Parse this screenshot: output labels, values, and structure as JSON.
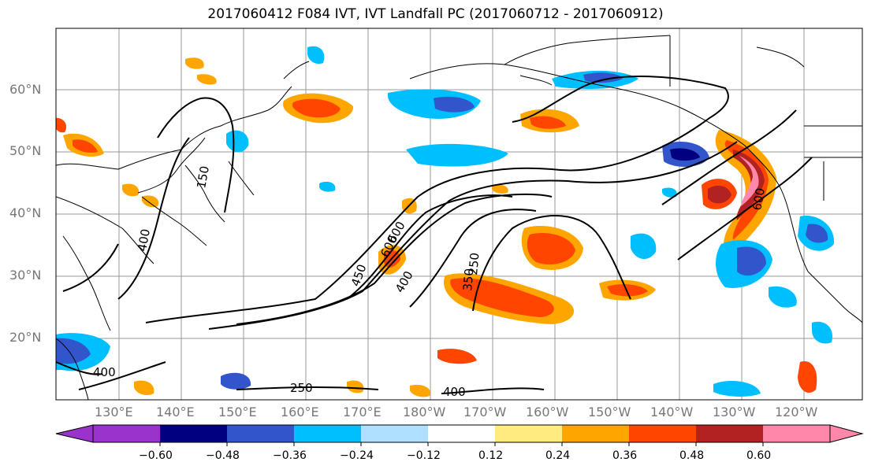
{
  "title": "2017060412 F084 IVT, IVT Landfall PC (2017060712 - 2017060912)",
  "lat_labels": [
    "60°N",
    "50°N",
    "40°N",
    "30°N",
    "20°N"
  ],
  "lon_labels": [
    "130°E",
    "140°E",
    "150°E",
    "160°E",
    "170°E",
    "180°W",
    "170°W",
    "160°W",
    "150°W",
    "140°W",
    "130°W",
    "120°W"
  ],
  "colorbar": {
    "ticks": [
      "−0.60",
      "−0.48",
      "−0.36",
      "−0.24",
      "−0.12",
      "0.12",
      "0.24",
      "0.36",
      "0.48",
      "0.60"
    ],
    "colors": [
      "#9933cc",
      "#000080",
      "#3355cc",
      "#00bfff",
      "#b0e0ff",
      "#ffffff",
      "#ffeb80",
      "#ffa500",
      "#ff4500",
      "#b22222",
      "#ff88aa",
      "#ff88aa"
    ]
  },
  "contour_labels": [
    "400",
    "600",
    "250",
    "400",
    "400",
    "450",
    "600",
    "350",
    "250",
    "600",
    "150",
    "400"
  ],
  "colors": {
    "positive_strong": "#ff4500",
    "positive_mid": "#ffa500",
    "positive_weak": "#ffeb80",
    "negative_weak": "#b0e0ff",
    "negative_mid": "#00bfff",
    "negative_strong": "#3355cc",
    "negative_max": "#000080",
    "positive_max": "#ff88aa"
  }
}
